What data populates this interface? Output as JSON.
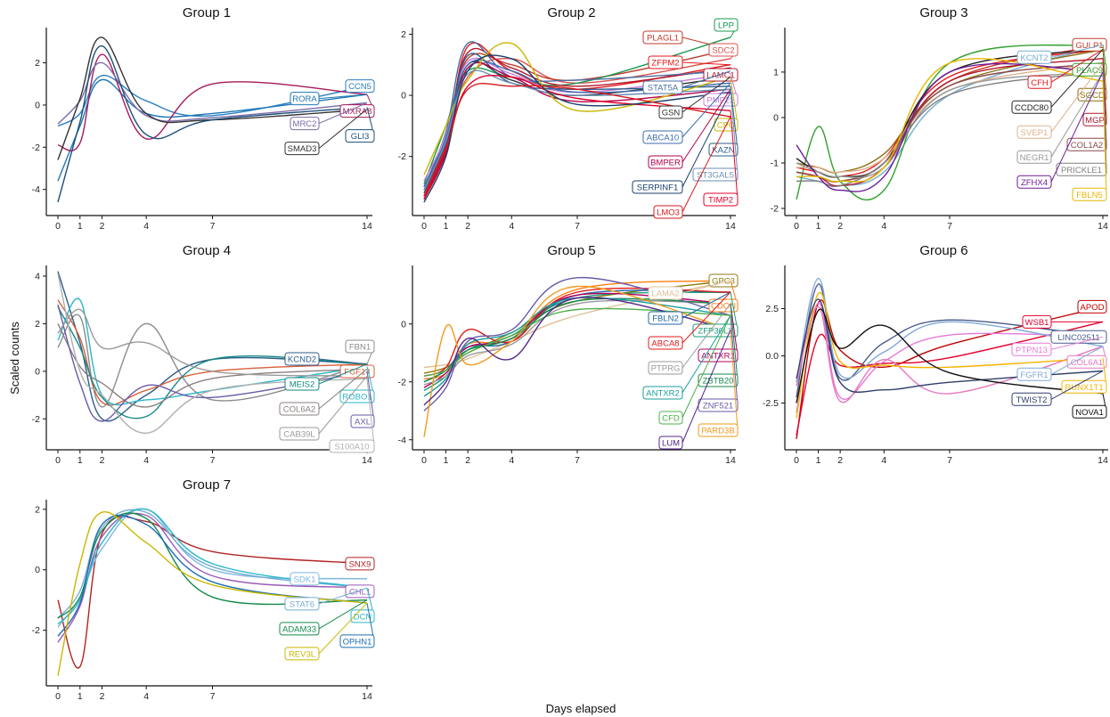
{
  "figure": {
    "ylabel": "Scaled counts",
    "xlabel": "Days elapsed"
  },
  "colors": {
    "axis": "#111111",
    "background": "#ffffff"
  },
  "chart_data": [
    {
      "type": "line",
      "title": "Group 1",
      "x_ticks": [
        0,
        1,
        2,
        4,
        7,
        14
      ],
      "y_ticks": [
        -4,
        -2,
        0,
        2
      ],
      "ylim": [
        -4.9,
        3.5
      ],
      "series": [
        {
          "name": "CCN5",
          "color": "#2a7fc0",
          "values": [
            -1.0,
            -0.4,
            1.4,
            0.2,
            -0.5,
            0.9
          ]
        },
        {
          "name": "RORA",
          "color": "#1f78b4",
          "values": [
            -3.6,
            -1.0,
            1.2,
            -0.4,
            -0.4,
            0.5
          ]
        },
        {
          "name": "MXRA8",
          "color": "#a6195a",
          "values": [
            -1.9,
            -1.8,
            2.4,
            -1.6,
            1.0,
            0.5
          ]
        },
        {
          "name": "MRC2",
          "color": "#7b6aa8",
          "values": [
            -0.9,
            0.2,
            2.0,
            -0.5,
            -0.6,
            0.1
          ]
        },
        {
          "name": "SMAD3",
          "color": "#333333",
          "values": [
            -2.6,
            0.3,
            3.2,
            -0.4,
            -0.7,
            -0.2
          ]
        },
        {
          "name": "GLI3",
          "color": "#1b4f7a",
          "values": [
            -4.6,
            -0.8,
            2.8,
            -1.4,
            -0.7,
            -0.1
          ]
        }
      ]
    },
    {
      "type": "line",
      "title": "Group 2",
      "x_ticks": [
        0,
        1,
        2,
        4,
        7,
        14
      ],
      "y_ticks": [
        -2,
        0,
        2
      ],
      "ylim": [
        -3.7,
        2.1
      ],
      "series": [
        {
          "name": "SDC2",
          "color": "#d9534f",
          "values": [
            -3.2,
            -1.6,
            0.6,
            1.2,
            0.4,
            1.2
          ]
        },
        {
          "name": "PLAGL1",
          "color": "#c0392b",
          "values": [
            -3.0,
            -1.4,
            1.2,
            1.0,
            0.5,
            1.5
          ]
        },
        {
          "name": "LPP",
          "color": "#1a9850",
          "values": [
            -2.9,
            -1.0,
            0.8,
            0.6,
            0.4,
            1.9
          ]
        },
        {
          "name": "ZFPM2",
          "color": "#e41a1c",
          "values": [
            -3.4,
            -1.8,
            1.6,
            0.8,
            0.2,
            1.0
          ]
        },
        {
          "name": "LAMC1",
          "color": "#b2182b",
          "values": [
            -3.1,
            -1.5,
            1.4,
            0.9,
            0.3,
            0.9
          ]
        },
        {
          "name": "STAT5A",
          "color": "#4a6fa5",
          "values": [
            -3.0,
            -1.2,
            1.7,
            0.6,
            0.5,
            0.8
          ]
        },
        {
          "name": "PMP22",
          "color": "#c77cdb",
          "values": [
            -2.8,
            -1.3,
            1.1,
            0.7,
            0.1,
            0.7
          ]
        },
        {
          "name": "GSN",
          "color": "#333333",
          "values": [
            -3.3,
            -1.7,
            1.0,
            0.5,
            0.0,
            0.6
          ]
        },
        {
          "name": "KAZN",
          "color": "#2b5d8a",
          "values": [
            -3.2,
            -1.6,
            1.3,
            0.4,
            0.2,
            0.3
          ]
        },
        {
          "name": "ABCA10",
          "color": "#3b6bb0",
          "values": [
            -3.0,
            -1.4,
            1.0,
            0.8,
            0.1,
            0.4
          ]
        },
        {
          "name": "BMPER",
          "color": "#b5004b",
          "values": [
            -3.3,
            -1.9,
            0.9,
            0.6,
            -0.2,
            0.2
          ]
        },
        {
          "name": "CPQ",
          "color": "#c9b800",
          "values": [
            -2.6,
            -1.0,
            0.5,
            1.7,
            -0.5,
            0.6
          ]
        },
        {
          "name": "ST3GAL5",
          "color": "#6a8fb5",
          "values": [
            -3.1,
            -1.5,
            0.7,
            0.4,
            0.0,
            0.2
          ]
        },
        {
          "name": "TIMP2",
          "color": "#e4002b",
          "values": [
            -3.4,
            -1.8,
            0.3,
            0.6,
            -0.1,
            -0.5
          ]
        },
        {
          "name": "SERPINF1",
          "color": "#1b3f6b",
          "values": [
            -3.5,
            -2.0,
            0.8,
            1.2,
            -0.3,
            0.1
          ]
        },
        {
          "name": "LMO3",
          "color": "#d7191c",
          "values": [
            -3.3,
            -1.7,
            0.2,
            0.3,
            0.2,
            -0.7
          ]
        }
      ]
    },
    {
      "type": "line",
      "title": "Group 3",
      "x_ticks": [
        0,
        1,
        2,
        4,
        7,
        14
      ],
      "y_ticks": [
        -2,
        -1,
        0,
        1
      ],
      "ylim": [
        -2.0,
        1.9
      ],
      "series": [
        {
          "name": "GULP1",
          "color": "#c0392b",
          "values": [
            -1.2,
            -1.3,
            -1.4,
            -1.0,
            0.8,
            1.6
          ]
        },
        {
          "name": "KCNT2",
          "color": "#74add1",
          "values": [
            -1.3,
            -1.4,
            -1.5,
            -1.2,
            0.5,
            1.6
          ]
        },
        {
          "name": "PLAC9",
          "color": "#33a02c",
          "values": [
            -1.8,
            -0.2,
            -1.4,
            -1.6,
            1.2,
            1.6
          ]
        },
        {
          "name": "CFH",
          "color": "#e41a1c",
          "values": [
            -1.1,
            -1.2,
            -1.3,
            -0.9,
            0.9,
            1.5
          ]
        },
        {
          "name": "SGCD",
          "color": "#8c6d0f",
          "values": [
            -1.0,
            -1.1,
            -1.2,
            -0.8,
            0.7,
            1.5
          ]
        },
        {
          "name": "CCDC80",
          "color": "#222222",
          "values": [
            -0.9,
            -1.2,
            -1.3,
            -1.0,
            1.0,
            1.5
          ]
        },
        {
          "name": "MGP",
          "color": "#b2182b",
          "values": [
            -1.2,
            -1.3,
            -1.5,
            -1.1,
            0.8,
            1.3
          ]
        },
        {
          "name": "SVEP1",
          "color": "#e0b08a",
          "values": [
            -1.1,
            -1.1,
            -1.2,
            -0.9,
            0.6,
            1.2
          ]
        },
        {
          "name": "COL1A2",
          "color": "#8b4a4a",
          "values": [
            -1.2,
            -1.3,
            -1.4,
            -1.0,
            0.7,
            1.2
          ]
        },
        {
          "name": "NEGR1",
          "color": "#999999",
          "values": [
            -1.0,
            -1.2,
            -1.3,
            -1.1,
            0.6,
            1.0
          ]
        },
        {
          "name": "PRICKLE1",
          "color": "#7f7f7f",
          "values": [
            -1.4,
            -1.4,
            -1.5,
            -1.0,
            0.5,
            1.0
          ]
        },
        {
          "name": "ZFHX4",
          "color": "#6a1b9a",
          "values": [
            -0.6,
            -1.3,
            -1.6,
            -1.3,
            1.0,
            1.0
          ]
        },
        {
          "name": "FBLN5",
          "color": "#e6b800",
          "values": [
            -1.3,
            -1.3,
            -1.4,
            -1.1,
            1.2,
            0.8
          ]
        }
      ]
    },
    {
      "type": "line",
      "title": "Group 4",
      "x_ticks": [
        0,
        1,
        2,
        4,
        7,
        14
      ],
      "y_ticks": [
        -2,
        0,
        2,
        4
      ],
      "ylim": [
        -3.0,
        4.3
      ],
      "series": [
        {
          "name": "FBN1",
          "color": "#8c8c8c",
          "values": [
            1.0,
            2.3,
            -1.5,
            2.0,
            -1.2,
            0.3
          ]
        },
        {
          "name": "KCND2",
          "color": "#2b5d8a",
          "values": [
            4.2,
            1.2,
            -2.0,
            -1.0,
            0.5,
            0.3
          ]
        },
        {
          "name": "FGF14",
          "color": "#d9603b",
          "values": [
            3.0,
            1.4,
            -1.3,
            -0.8,
            0.0,
            0.3
          ]
        },
        {
          "name": "MEIS2",
          "color": "#138a82",
          "values": [
            2.7,
            1.0,
            -1.1,
            -1.9,
            0.5,
            0.3
          ]
        },
        {
          "name": "ROBO1",
          "color": "#2ab7ca",
          "values": [
            1.3,
            3.0,
            -1.0,
            -1.2,
            -0.8,
            0.2
          ]
        },
        {
          "name": "COL6A2",
          "color": "#8c7f7f",
          "values": [
            2.0,
            0.2,
            -0.5,
            -1.5,
            -0.3,
            0.1
          ]
        },
        {
          "name": "AXL",
          "color": "#6a5aa8",
          "values": [
            2.8,
            -0.5,
            -2.1,
            -0.6,
            -1.1,
            0.0
          ]
        },
        {
          "name": "CAB39L",
          "color": "#9a9a9a",
          "values": [
            1.6,
            2.6,
            1.0,
            1.2,
            0.0,
            -0.2
          ]
        },
        {
          "name": "S100A10",
          "color": "#b0b0b0",
          "values": [
            4.1,
            0.0,
            -1.0,
            -2.6,
            -0.8,
            -0.3
          ]
        }
      ]
    },
    {
      "type": "line",
      "title": "Group 5",
      "x_ticks": [
        0,
        1,
        2,
        4,
        7,
        14
      ],
      "y_ticks": [
        -4,
        -2,
        0
      ],
      "ylim": [
        -4.1,
        1.9
      ],
      "series": [
        {
          "name": "GPC3",
          "color": "#8c7a0c",
          "values": [
            -1.7,
            -1.5,
            -1.0,
            -0.3,
            0.8,
            1.5
          ]
        },
        {
          "name": "LAMA2",
          "color": "#e0c097",
          "values": [
            -1.5,
            -1.4,
            -1.2,
            -0.6,
            0.3,
            1.5
          ]
        },
        {
          "name": "CDON",
          "color": "#ff7f0e",
          "values": [
            -1.9,
            -1.7,
            -0.7,
            -0.5,
            1.2,
            1.5
          ]
        },
        {
          "name": "FBLN2",
          "color": "#2166ac",
          "values": [
            -2.0,
            -1.6,
            -0.8,
            -0.6,
            1.0,
            1.1
          ]
        },
        {
          "name": "ZFP36L2",
          "color": "#1b9e77",
          "values": [
            -2.3,
            -1.8,
            -0.9,
            -0.4,
            0.9,
            1.1
          ]
        },
        {
          "name": "ABCA8",
          "color": "#e31a1c",
          "values": [
            -1.8,
            -1.5,
            -0.2,
            -0.6,
            1.1,
            1.1
          ]
        },
        {
          "name": "ANTXR1",
          "color": "#b2005e",
          "values": [
            -2.2,
            -1.7,
            -0.8,
            -0.5,
            1.0,
            0.7
          ]
        },
        {
          "name": "PTPRG",
          "color": "#999999",
          "values": [
            -2.1,
            -1.8,
            -1.1,
            -0.7,
            0.7,
            0.7
          ]
        },
        {
          "name": "ZBTB20",
          "color": "#138a4a",
          "values": [
            -2.0,
            -1.6,
            -0.9,
            -0.5,
            0.8,
            0.7
          ]
        },
        {
          "name": "ANTXR2",
          "color": "#1a9e9e",
          "values": [
            -2.5,
            -1.9,
            -0.7,
            -0.3,
            0.9,
            0.3
          ]
        },
        {
          "name": "ZNF521",
          "color": "#6a5aa8",
          "values": [
            -3.0,
            -2.2,
            -0.6,
            -0.2,
            1.6,
            0.3
          ]
        },
        {
          "name": "CFD",
          "color": "#4daf4a",
          "values": [
            -1.8,
            -1.6,
            -1.0,
            -0.4,
            0.5,
            0.3
          ]
        },
        {
          "name": "PARD3B",
          "color": "#f29a1b",
          "values": [
            -3.9,
            -0.1,
            -1.4,
            -0.6,
            1.3,
            -0.2
          ]
        },
        {
          "name": "LUM",
          "color": "#542788",
          "values": [
            -2.8,
            -2.0,
            -0.5,
            -1.2,
            0.9,
            -0.2
          ]
        }
      ]
    },
    {
      "type": "line",
      "title": "Group 6",
      "x_ticks": [
        0,
        1,
        2,
        4,
        7,
        14
      ],
      "y_ticks": [
        -2.5,
        0.0,
        2.5
      ],
      "ylim": [
        -4.6,
        4.6
      ],
      "series": [
        {
          "name": "APOD",
          "color": "#c00000",
          "values": [
            -4.4,
            2.8,
            0.3,
            -0.6,
            0.6,
            2.6
          ]
        },
        {
          "name": "WSB1",
          "color": "#e4002b",
          "values": [
            -4.2,
            1.0,
            -0.5,
            -0.4,
            -0.1,
            1.8
          ]
        },
        {
          "name": "LINC02511",
          "color": "#4a5a8a",
          "values": [
            -2.2,
            3.8,
            -1.2,
            0.7,
            1.9,
            1.0
          ]
        },
        {
          "name": "PTPN13",
          "color": "#e37ad8",
          "values": [
            -3.0,
            2.8,
            -2.2,
            -0.3,
            1.1,
            1.0
          ]
        },
        {
          "name": "COL6A1",
          "color": "#e878c0",
          "values": [
            -1.6,
            2.6,
            -2.4,
            -0.2,
            -2.0,
            0.5
          ]
        },
        {
          "name": "FGFR1",
          "color": "#7fa8d8",
          "values": [
            -1.4,
            4.1,
            -1.0,
            0.2,
            1.8,
            0.5
          ]
        },
        {
          "name": "RUNX1T1",
          "color": "#f2b400",
          "values": [
            -3.3,
            3.3,
            -0.3,
            -0.5,
            -0.6,
            -0.1
          ]
        },
        {
          "name": "TWIST2",
          "color": "#2f3f6b",
          "values": [
            -1.2,
            3.0,
            -1.4,
            -1.8,
            -1.4,
            -0.8
          ]
        },
        {
          "name": "NOVA1",
          "color": "#111111",
          "values": [
            -2.5,
            2.4,
            0.4,
            1.6,
            -0.9,
            -2.0
          ]
        }
      ]
    },
    {
      "type": "line",
      "title": "Group 7",
      "x_ticks": [
        0,
        1,
        2,
        4,
        7,
        14
      ],
      "y_ticks": [
        -2,
        0,
        2
      ],
      "ylim": [
        -3.6,
        2.2
      ],
      "series": [
        {
          "name": "SNX9",
          "color": "#b22222",
          "values": [
            -1.0,
            -3.2,
            1.2,
            1.6,
            0.6,
            0.2
          ]
        },
        {
          "name": "SDK1",
          "color": "#7fb8e0",
          "values": [
            -1.9,
            -0.9,
            0.7,
            2.0,
            0.0,
            -0.3
          ]
        },
        {
          "name": "CHL1",
          "color": "#9b59b6",
          "values": [
            -2.4,
            -1.2,
            1.1,
            1.8,
            -0.2,
            -0.6
          ]
        },
        {
          "name": "STAT6",
          "color": "#74add1",
          "values": [
            -1.6,
            -0.7,
            1.4,
            1.9,
            0.1,
            -0.6
          ]
        },
        {
          "name": "DCN",
          "color": "#2ab7ca",
          "values": [
            -1.8,
            -1.0,
            0.9,
            2.0,
            0.2,
            -0.6
          ]
        },
        {
          "name": "ADAM33",
          "color": "#138a4a",
          "values": [
            -1.6,
            -0.9,
            1.3,
            1.7,
            -0.9,
            -1.0
          ]
        },
        {
          "name": "OPHN1",
          "color": "#1f6fb4",
          "values": [
            -2.2,
            -1.1,
            1.5,
            1.5,
            -0.4,
            -1.1
          ]
        },
        {
          "name": "REV3L",
          "color": "#c9b800",
          "values": [
            -3.5,
            0.2,
            1.9,
            0.9,
            -0.5,
            -1.1
          ]
        }
      ]
    }
  ]
}
